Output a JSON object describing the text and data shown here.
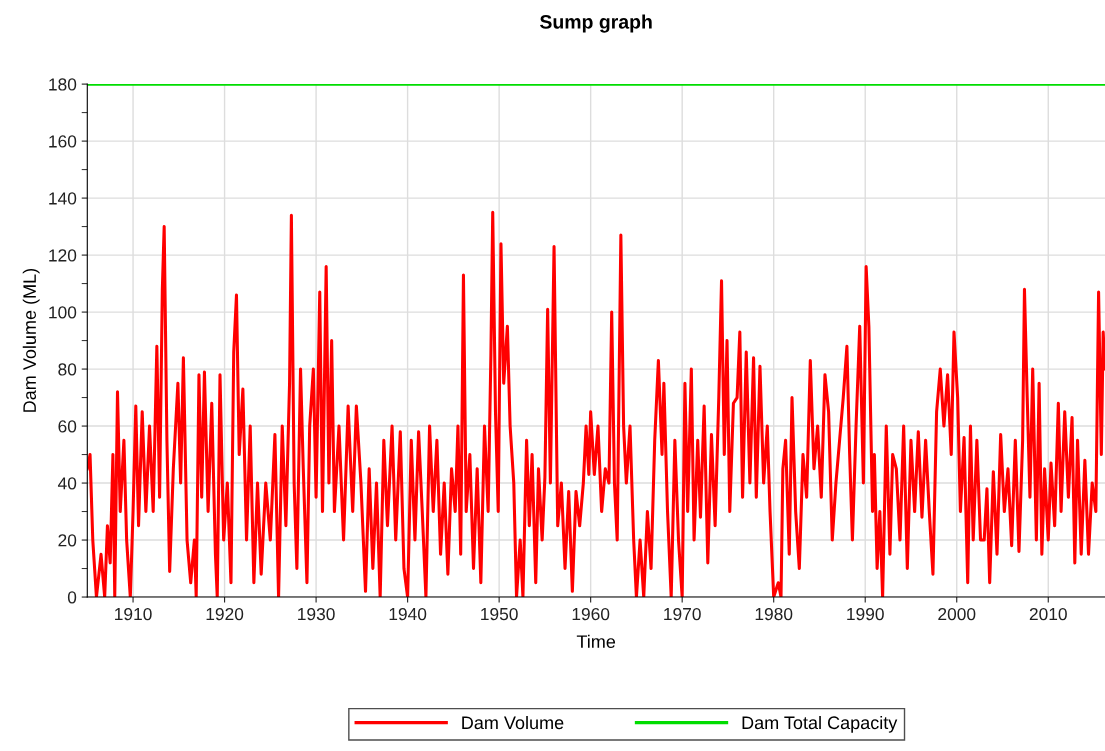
{
  "chart_data": {
    "type": "line",
    "title": "Sump graph",
    "xlabel": "Time",
    "ylabel": "Dam Volume (ML)",
    "xlim": [
      1905,
      2016.2
    ],
    "xticks": [
      1910,
      1920,
      1930,
      1940,
      1950,
      1960,
      1970,
      1980,
      1990,
      2000,
      2010
    ],
    "ylim": [
      0,
      180
    ],
    "yticks": [
      0,
      {
        "value": 10,
        "label": null
      },
      20,
      {
        "value": 30,
        "label": null
      },
      40,
      {
        "value": 50,
        "label": null
      },
      60,
      {
        "value": 70,
        "label": null
      },
      80,
      {
        "value": 90,
        "label": null
      },
      100,
      {
        "value": 110,
        "label": null
      },
      120,
      {
        "value": 130,
        "label": null
      },
      140,
      {
        "value": 150,
        "label": null
      },
      160,
      {
        "value": 170,
        "label": null
      },
      180
    ],
    "grid": true,
    "legend": "bottom",
    "marker": "none",
    "line_style": "solid",
    "series": [
      {
        "name": "Dam Volume",
        "color": "#ff0000",
        "x": [
          1905.0,
          1905.3,
          1905.6,
          1906.0,
          1906.5,
          1906.9,
          1907.2,
          1907.5,
          1907.8,
          1908.0,
          1908.3,
          1908.6,
          1909.0,
          1909.3,
          1909.7,
          1910.0,
          1910.3,
          1910.6,
          1911.0,
          1911.4,
          1911.8,
          1912.2,
          1912.6,
          1912.9,
          1913.2,
          1913.4,
          1913.7,
          1914.0,
          1914.4,
          1914.9,
          1915.2,
          1915.5,
          1915.9,
          1916.3,
          1916.7,
          1916.9,
          1917.2,
          1917.5,
          1917.8,
          1918.2,
          1918.6,
          1919.0,
          1919.2,
          1919.5,
          1919.9,
          1920.3,
          1920.7,
          1921.0,
          1921.3,
          1921.6,
          1922.0,
          1922.4,
          1922.8,
          1923.2,
          1923.6,
          1924.0,
          1924.5,
          1925.0,
          1925.5,
          1925.9,
          1926.3,
          1926.7,
          1927.1,
          1927.3,
          1927.6,
          1927.9,
          1928.3,
          1928.6,
          1929.0,
          1929.3,
          1929.7,
          1930.0,
          1930.4,
          1930.7,
          1931.1,
          1931.4,
          1931.7,
          1932.0,
          1932.5,
          1933.0,
          1933.5,
          1934.0,
          1934.4,
          1934.9,
          1935.4,
          1935.8,
          1936.2,
          1936.6,
          1937.0,
          1937.4,
          1937.8,
          1938.3,
          1938.7,
          1939.2,
          1939.6,
          1940.0,
          1940.4,
          1940.8,
          1941.2,
          1941.6,
          1942.0,
          1942.4,
          1942.8,
          1943.2,
          1943.6,
          1944.0,
          1944.4,
          1944.8,
          1945.2,
          1945.5,
          1945.8,
          1946.1,
          1946.4,
          1946.8,
          1947.2,
          1947.6,
          1948.0,
          1948.4,
          1948.8,
          1949.1,
          1949.3,
          1949.6,
          1949.9,
          1950.2,
          1950.5,
          1950.9,
          1951.2,
          1951.6,
          1951.9,
          1952.3,
          1952.6,
          1953.0,
          1953.3,
          1953.6,
          1954.0,
          1954.3,
          1954.7,
          1955.0,
          1955.3,
          1955.6,
          1956.0,
          1956.4,
          1956.8,
          1957.2,
          1957.6,
          1958.0,
          1958.4,
          1958.8,
          1959.2,
          1959.5,
          1959.8,
          1960.0,
          1960.4,
          1960.8,
          1961.2,
          1961.6,
          1962.0,
          1962.3,
          1962.6,
          1962.9,
          1963.3,
          1963.6,
          1963.9,
          1964.3,
          1964.7,
          1965.0,
          1965.4,
          1965.8,
          1966.2,
          1966.6,
          1967.0,
          1967.4,
          1967.8,
          1968.0,
          1968.4,
          1968.8,
          1969.2,
          1969.6,
          1970.0,
          1970.3,
          1970.6,
          1971.0,
          1971.3,
          1971.7,
          1972.0,
          1972.4,
          1972.8,
          1973.2,
          1973.6,
          1974.0,
          1974.3,
          1974.6,
          1974.9,
          1975.2,
          1975.6,
          1976.0,
          1976.3,
          1976.6,
          1977.0,
          1977.4,
          1977.8,
          1978.1,
          1978.5,
          1978.9,
          1979.3,
          1979.6,
          1980.0,
          1980.5,
          1980.8,
          1981.0,
          1981.3,
          1981.7,
          1982.0,
          1982.4,
          1982.8,
          1983.2,
          1983.6,
          1984.0,
          1984.4,
          1984.8,
          1985.2,
          1985.6,
          1986.0,
          1986.4,
          1986.8,
          1987.2,
          1987.6,
          1988.0,
          1988.3,
          1988.6,
          1989.0,
          1989.4,
          1989.8,
          1990.1,
          1990.4,
          1990.8,
          1991.0,
          1991.3,
          1991.6,
          1991.9,
          1992.3,
          1992.7,
          1993.0,
          1993.4,
          1993.8,
          1994.2,
          1994.6,
          1995.0,
          1995.4,
          1995.8,
          1996.2,
          1996.6,
          1997.0,
          1997.4,
          1997.8,
          1998.2,
          1998.6,
          1999.0,
          1999.4,
          1999.7,
          2000.1,
          2000.4,
          2000.8,
          2001.2,
          2001.5,
          2001.8,
          2002.2,
          2002.6,
          2003.0,
          2003.3,
          2003.6,
          2004.0,
          2004.4,
          2004.8,
          2005.2,
          2005.6,
          2006.0,
          2006.4,
          2006.8,
          2007.2,
          2007.4,
          2007.7,
          2008.0,
          2008.3,
          2008.7,
          2009.0,
          2009.3,
          2009.6,
          2010.0,
          2010.3,
          2010.7,
          2011.1,
          2011.4,
          2011.8,
          2012.2,
          2012.6,
          2012.9,
          2013.2,
          2013.6,
          2014.0,
          2014.4,
          2014.8,
          2015.2,
          2015.5,
          2015.8,
          2016.0,
          2016.2
        ],
        "values": [
          45,
          50,
          20,
          0,
          15,
          0,
          25,
          12,
          50,
          0,
          72,
          30,
          55,
          20,
          0,
          30,
          67,
          25,
          65,
          30,
          60,
          30,
          88,
          35,
          108,
          130,
          55,
          9,
          45,
          75,
          40,
          84,
          20,
          5,
          20,
          0,
          78,
          35,
          79,
          30,
          68,
          15,
          0,
          78,
          20,
          40,
          5,
          86,
          106,
          50,
          73,
          20,
          60,
          5,
          40,
          8,
          40,
          20,
          57,
          0,
          60,
          25,
          75,
          134,
          40,
          10,
          80,
          45,
          5,
          60,
          80,
          35,
          107,
          30,
          116,
          40,
          90,
          30,
          60,
          20,
          67,
          30,
          67,
          40,
          2,
          45,
          10,
          40,
          0,
          55,
          25,
          60,
          20,
          58,
          10,
          0,
          55,
          20,
          58,
          30,
          0,
          60,
          30,
          55,
          15,
          40,
          8,
          45,
          30,
          60,
          15,
          113,
          30,
          50,
          10,
          45,
          5,
          60,
          30,
          85,
          135,
          65,
          30,
          124,
          75,
          95,
          60,
          40,
          0,
          20,
          0,
          55,
          25,
          50,
          5,
          45,
          20,
          42,
          101,
          40,
          123,
          25,
          40,
          10,
          37,
          2,
          37,
          25,
          40,
          60,
          43,
          65,
          43,
          60,
          30,
          45,
          40,
          100,
          40,
          20,
          127,
          60,
          40,
          60,
          20,
          0,
          20,
          0,
          30,
          10,
          55,
          83,
          50,
          75,
          30,
          0,
          55,
          20,
          0,
          75,
          30,
          80,
          20,
          55,
          28,
          67,
          12,
          57,
          25,
          70,
          111,
          50,
          90,
          30,
          68,
          70,
          93,
          35,
          86,
          40,
          84,
          35,
          81,
          40,
          60,
          30,
          0,
          5,
          0,
          45,
          55,
          15,
          70,
          30,
          10,
          50,
          35,
          83,
          45,
          60,
          35,
          78,
          65,
          20,
          40,
          55,
          70,
          88,
          50,
          20,
          60,
          95,
          40,
          116,
          95,
          30,
          50,
          10,
          30,
          0,
          60,
          15,
          50,
          45,
          20,
          60,
          10,
          55,
          30,
          58,
          28,
          55,
          30,
          8,
          65,
          80,
          60,
          78,
          50,
          93,
          70,
          30,
          56,
          5,
          60,
          20,
          55,
          20,
          20,
          38,
          5,
          44,
          15,
          57,
          30,
          45,
          18,
          55,
          16,
          55,
          108,
          70,
          35,
          80,
          20,
          75,
          15,
          45,
          20,
          47,
          25,
          68,
          30,
          65,
          35,
          63,
          12,
          55,
          15,
          48,
          15,
          40,
          30,
          107,
          50,
          93,
          80
        ]
      },
      {
        "name": "Dam Total Capacity",
        "color": "#00dd00",
        "x": [
          1905,
          2016.2
        ],
        "values": [
          180,
          180
        ]
      }
    ]
  }
}
